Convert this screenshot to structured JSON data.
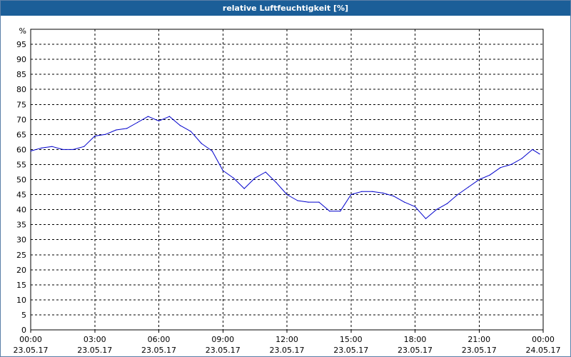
{
  "title": "relative Luftfeuchtigkeit [%]",
  "colors": {
    "titlebar_bg": "#1b5e98",
    "title_text": "#ffffff",
    "series_line": "#0000cc",
    "grid": "#000000",
    "plot_bg": "#ffffff"
  },
  "chart_data": {
    "type": "line",
    "title": "relative Luftfeuchtigkeit [%]",
    "ylabel": "%",
    "xlabel": "",
    "ylim": [
      0,
      100
    ],
    "y_ticks": [
      0,
      5,
      10,
      15,
      20,
      25,
      30,
      35,
      40,
      45,
      50,
      55,
      60,
      65,
      70,
      75,
      80,
      85,
      90,
      95
    ],
    "xlim": [
      "23.05.17 00:00",
      "24.05.17 00:00"
    ],
    "x_ticks": [
      {
        "time": "00:00",
        "date": "23.05.17"
      },
      {
        "time": "03:00",
        "date": "23.05.17"
      },
      {
        "time": "06:00",
        "date": "23.05.17"
      },
      {
        "time": "09:00",
        "date": "23.05.17"
      },
      {
        "time": "12:00",
        "date": "23.05.17"
      },
      {
        "time": "15:00",
        "date": "23.05.17"
      },
      {
        "time": "18:00",
        "date": "23.05.17"
      },
      {
        "time": "21:00",
        "date": "23.05.17"
      },
      {
        "time": "00:00",
        "date": "24.05.17"
      }
    ],
    "grid": true,
    "grid_style": "dashed",
    "legend": "none",
    "series": [
      {
        "x": [
          "00:00",
          "00:30",
          "01:00",
          "01:30",
          "02:00",
          "02:30",
          "03:00",
          "03:30",
          "04:00",
          "04:30",
          "05:00",
          "05:30",
          "06:00",
          "06:30",
          "07:00",
          "07:30",
          "08:00",
          "08:30",
          "09:00",
          "09:30",
          "10:00",
          "10:30",
          "11:00",
          "11:30",
          "12:00",
          "12:30",
          "13:00",
          "13:30",
          "14:00",
          "14:30",
          "15:00",
          "15:30",
          "16:00",
          "16:30",
          "17:00",
          "17:30",
          "18:00",
          "18:30",
          "19:00",
          "19:30",
          "20:00",
          "20:30",
          "21:00",
          "21:30",
          "22:00",
          "22:30",
          "23:00",
          "23:30",
          "23:50"
        ],
        "values": [
          59.5,
          60.5,
          61,
          60,
          60,
          61,
          64.5,
          65,
          66.5,
          67,
          69,
          71,
          69.5,
          71,
          68,
          66,
          62,
          59.5,
          53,
          50.5,
          47,
          50.5,
          52.5,
          49,
          45,
          43,
          42.5,
          42.5,
          39.5,
          39.5,
          45,
          46,
          46,
          45.5,
          44.5,
          42.5,
          41,
          37,
          40,
          42,
          45,
          47.5,
          50,
          51.5,
          54,
          55,
          57,
          60,
          58.5
        ]
      }
    ]
  }
}
